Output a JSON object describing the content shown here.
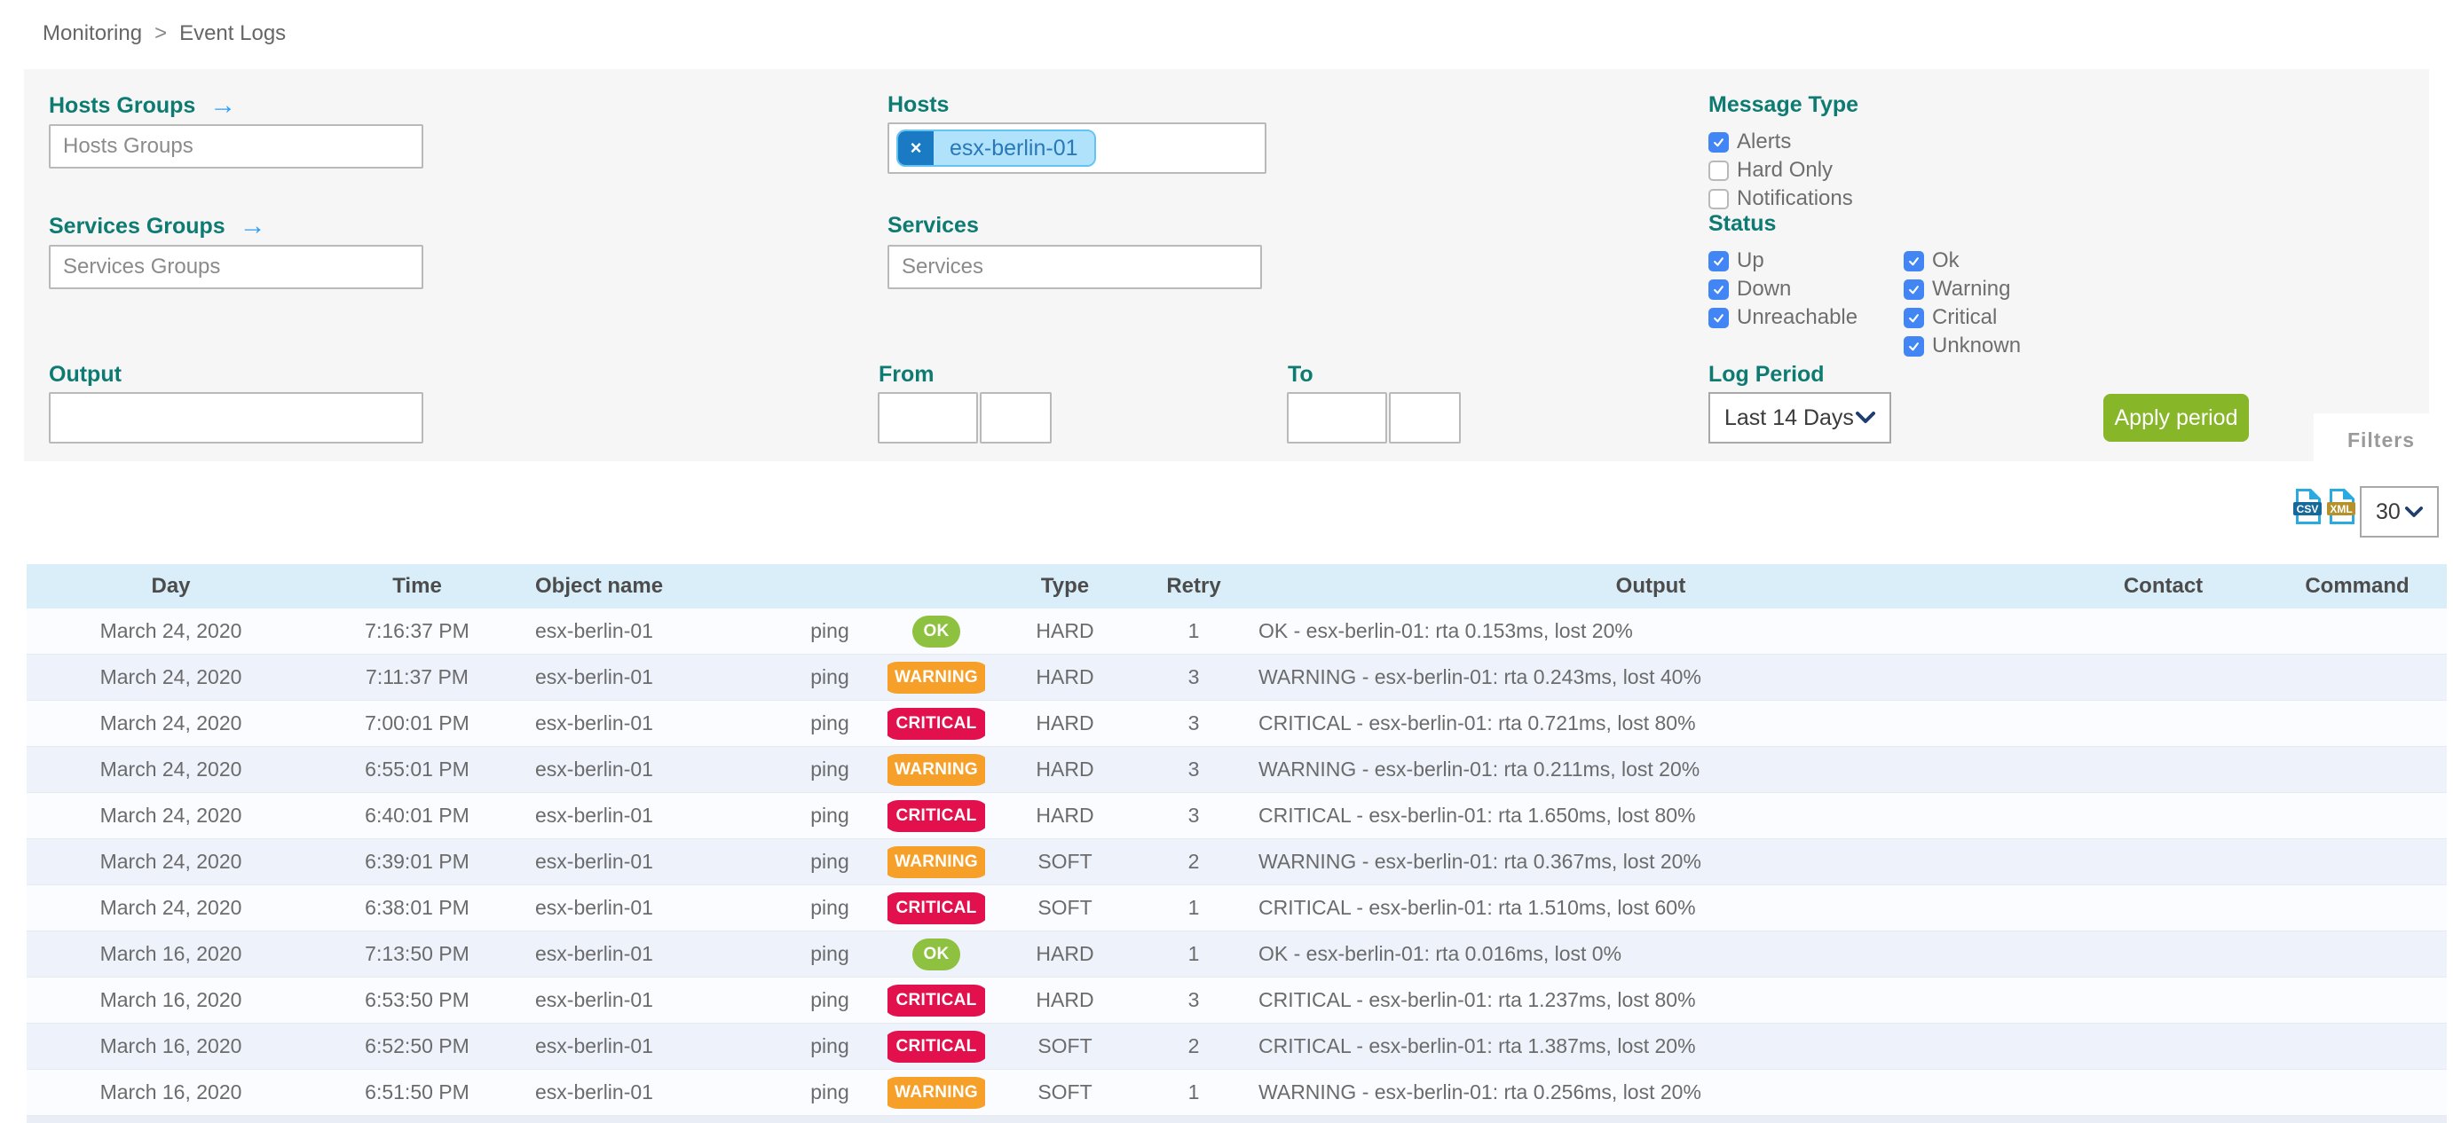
{
  "breadcrumb": {
    "items": [
      "Monitoring",
      "Event Logs"
    ],
    "separator": ">"
  },
  "filters": {
    "hosts_groups": {
      "label": "Hosts Groups",
      "placeholder": "Hosts Groups"
    },
    "services_groups": {
      "label": "Services Groups",
      "placeholder": "Services Groups"
    },
    "hosts": {
      "label": "Hosts",
      "selected": [
        {
          "text": "esx-berlin-01"
        }
      ],
      "remove_glyph": "×"
    },
    "services": {
      "label": "Services",
      "placeholder": "Services"
    },
    "output": {
      "label": "Output",
      "value": ""
    },
    "from": {
      "label": "From",
      "date": "",
      "time": ""
    },
    "to": {
      "label": "To",
      "date": "",
      "time": ""
    },
    "message_type": {
      "label": "Message Type",
      "options": [
        {
          "label": "Alerts",
          "checked": true
        },
        {
          "label": "Hard Only",
          "checked": false
        },
        {
          "label": "Notifications",
          "checked": false
        }
      ]
    },
    "status": {
      "label": "Status",
      "columns": [
        [
          {
            "label": "Up",
            "checked": true
          },
          {
            "label": "Down",
            "checked": true
          },
          {
            "label": "Unreachable",
            "checked": true
          }
        ],
        [
          {
            "label": "Ok",
            "checked": true
          },
          {
            "label": "Warning",
            "checked": true
          },
          {
            "label": "Critical",
            "checked": true
          },
          {
            "label": "Unknown",
            "checked": true
          }
        ]
      ]
    },
    "log_period": {
      "label": "Log Period",
      "value": "Last 14 Days"
    },
    "apply_button": "Apply period",
    "filters_tab": "Filters"
  },
  "toolbar": {
    "csv_icon": "CSV",
    "xml_icon": "XML",
    "page_size": "30"
  },
  "table": {
    "columns": [
      "Day",
      "Time",
      "Object name",
      "",
      "",
      "Type",
      "Retry",
      "Output",
      "Contact",
      "Command"
    ],
    "rows": [
      {
        "day": "March 24, 2020",
        "time": "7:16:37 PM",
        "object": "esx-berlin-01",
        "service": "ping",
        "status": "OK",
        "type": "HARD",
        "retry": "1",
        "output": "OK - esx-berlin-01: rta 0.153ms, lost 20%",
        "contact": "",
        "command": ""
      },
      {
        "day": "March 24, 2020",
        "time": "7:11:37 PM",
        "object": "esx-berlin-01",
        "service": "ping",
        "status": "WARNING",
        "type": "HARD",
        "retry": "3",
        "output": "WARNING - esx-berlin-01: rta 0.243ms, lost 40%",
        "contact": "",
        "command": ""
      },
      {
        "day": "March 24, 2020",
        "time": "7:00:01 PM",
        "object": "esx-berlin-01",
        "service": "ping",
        "status": "CRITICAL",
        "type": "HARD",
        "retry": "3",
        "output": "CRITICAL - esx-berlin-01: rta 0.721ms, lost 80%",
        "contact": "",
        "command": ""
      },
      {
        "day": "March 24, 2020",
        "time": "6:55:01 PM",
        "object": "esx-berlin-01",
        "service": "ping",
        "status": "WARNING",
        "type": "HARD",
        "retry": "3",
        "output": "WARNING - esx-berlin-01: rta 0.211ms, lost 20%",
        "contact": "",
        "command": ""
      },
      {
        "day": "March 24, 2020",
        "time": "6:40:01 PM",
        "object": "esx-berlin-01",
        "service": "ping",
        "status": "CRITICAL",
        "type": "HARD",
        "retry": "3",
        "output": "CRITICAL - esx-berlin-01: rta 1.650ms, lost 80%",
        "contact": "",
        "command": ""
      },
      {
        "day": "March 24, 2020",
        "time": "6:39:01 PM",
        "object": "esx-berlin-01",
        "service": "ping",
        "status": "WARNING",
        "type": "SOFT",
        "retry": "2",
        "output": "WARNING - esx-berlin-01: rta 0.367ms, lost 20%",
        "contact": "",
        "command": ""
      },
      {
        "day": "March 24, 2020",
        "time": "6:38:01 PM",
        "object": "esx-berlin-01",
        "service": "ping",
        "status": "CRITICAL",
        "type": "SOFT",
        "retry": "1",
        "output": "CRITICAL - esx-berlin-01: rta 1.510ms, lost 60%",
        "contact": "",
        "command": ""
      },
      {
        "day": "March 16, 2020",
        "time": "7:13:50 PM",
        "object": "esx-berlin-01",
        "service": "ping",
        "status": "OK",
        "type": "HARD",
        "retry": "1",
        "output": "OK - esx-berlin-01: rta 0.016ms, lost 0%",
        "contact": "",
        "command": ""
      },
      {
        "day": "March 16, 2020",
        "time": "6:53:50 PM",
        "object": "esx-berlin-01",
        "service": "ping",
        "status": "CRITICAL",
        "type": "HARD",
        "retry": "3",
        "output": "CRITICAL - esx-berlin-01: rta 1.237ms, lost 80%",
        "contact": "",
        "command": ""
      },
      {
        "day": "March 16, 2020",
        "time": "6:52:50 PM",
        "object": "esx-berlin-01",
        "service": "ping",
        "status": "CRITICAL",
        "type": "SOFT",
        "retry": "2",
        "output": "CRITICAL - esx-berlin-01: rta 1.387ms, lost 20%",
        "contact": "",
        "command": ""
      },
      {
        "day": "March 16, 2020",
        "time": "6:51:50 PM",
        "object": "esx-berlin-01",
        "service": "ping",
        "status": "WARNING",
        "type": "SOFT",
        "retry": "1",
        "output": "WARNING - esx-berlin-01: rta 0.256ms, lost 20%",
        "contact": "",
        "command": ""
      }
    ]
  },
  "colors": {
    "ok": "#8dc13f",
    "warning": "#f6a02a",
    "critical": "#e2104c",
    "accent_teal": "#0d7b72",
    "checkbox_blue": "#4285f4",
    "apply_green": "#87b629",
    "header_blue": "#d9eef9"
  }
}
